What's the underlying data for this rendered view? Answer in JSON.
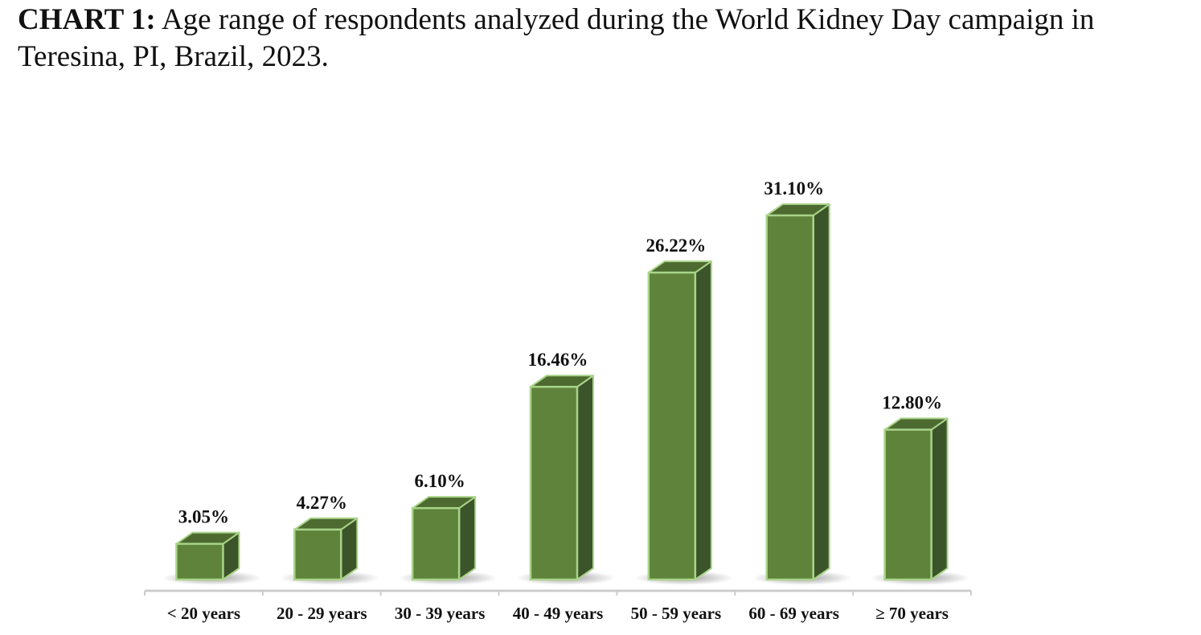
{
  "caption": {
    "lead": "CHART 1:",
    "text": " Age range of respondents analyzed during the World Kidney Day campaign in Teresina, PI, Brazil, 2023."
  },
  "chart_data": {
    "type": "bar",
    "style": "3d-column",
    "categories": [
      "< 20 years",
      "20 - 29 years",
      "30 - 39 years",
      "40 - 49 years",
      "50 - 59 years",
      "60 - 69 years",
      "≥ 70 years"
    ],
    "values": [
      3.05,
      4.27,
      6.1,
      16.46,
      26.22,
      31.1,
      12.8
    ],
    "value_labels": [
      "3.05%",
      "4.27%",
      "6.10%",
      "16.46%",
      "26.22%",
      "31.10%",
      "12.80%"
    ],
    "unit": "%",
    "grid": false,
    "legend": "none",
    "colors": {
      "bar_front": "#5f833b",
      "bar_side": "#3c5429",
      "bar_top": "#4d6b30",
      "bar_edge": "#a9d48a",
      "axis": "#cccccc"
    }
  }
}
